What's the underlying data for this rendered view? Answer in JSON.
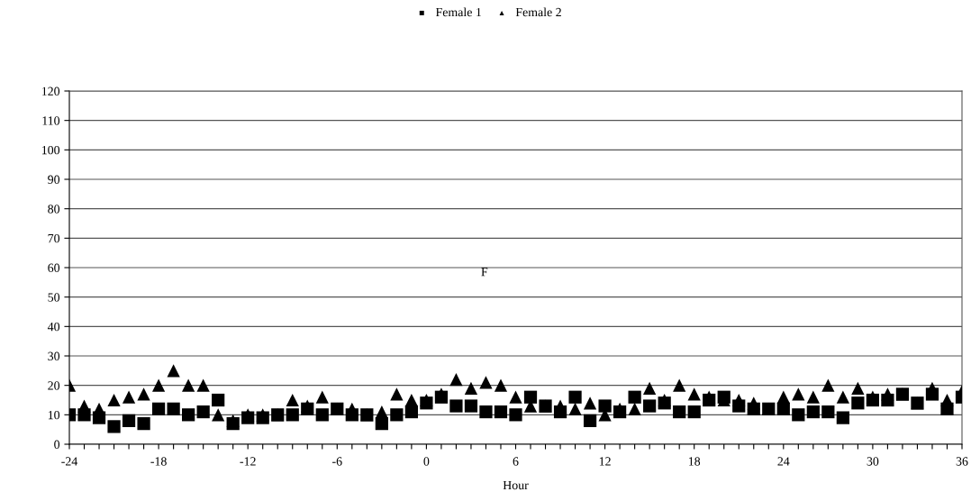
{
  "chart_data": {
    "type": "scatter",
    "xlabel": "Hour",
    "x": [
      -24,
      -23,
      -22,
      -21,
      -20,
      -19,
      -18,
      -17,
      -16,
      -15,
      -14,
      -13,
      -12,
      -11,
      -10,
      -9,
      -8,
      -7,
      -6,
      -5,
      -4,
      -3,
      -2,
      -1,
      0,
      1,
      2,
      3,
      4,
      5,
      6,
      7,
      8,
      9,
      10,
      11,
      12,
      13,
      14,
      15,
      16,
      17,
      18,
      19,
      20,
      21,
      22,
      23,
      24,
      25,
      26,
      27,
      28,
      29,
      30,
      31,
      32,
      33,
      34,
      35,
      36
    ],
    "series": [
      {
        "name": "Female 1",
        "color": "#000000",
        "marker": "square",
        "values": [
          10,
          10,
          9,
          6,
          8,
          7,
          12,
          12,
          10,
          11,
          15,
          7,
          9,
          9,
          10,
          10,
          12,
          10,
          12,
          10,
          10,
          7,
          10,
          11,
          14,
          16,
          13,
          13,
          11,
          11,
          10,
          16,
          13,
          11,
          16,
          8,
          13,
          11,
          16,
          13,
          14,
          11,
          11,
          15,
          16,
          13,
          12,
          12,
          12,
          10,
          11,
          11,
          9,
          14,
          15,
          15,
          17,
          14,
          17,
          12,
          16
        ]
      },
      {
        "name": "Female 2",
        "color": "#000000",
        "marker": "triangle",
        "values": [
          20,
          13,
          12,
          15,
          16,
          17,
          20,
          25,
          20,
          20,
          10,
          8,
          10,
          10,
          10,
          15,
          13,
          16,
          12,
          12,
          10,
          11,
          17,
          15,
          15,
          17,
          22,
          19,
          21,
          20,
          16,
          13,
          13,
          13,
          12,
          14,
          10,
          12,
          12,
          19,
          15,
          20,
          17,
          16,
          15,
          15,
          14,
          12,
          16,
          17,
          16,
          20,
          16,
          19,
          16,
          17,
          17,
          14,
          19,
          15,
          18
        ]
      }
    ],
    "xlim": [
      -24,
      36
    ],
    "xticks": [
      -24,
      {
        "value": -23,
        "label": null
      },
      {
        "value": -22,
        "label": null
      },
      {
        "value": -21,
        "label": null
      },
      {
        "value": -20,
        "label": null
      },
      {
        "value": -19,
        "label": null
      },
      -18,
      {
        "value": -17,
        "label": null
      },
      {
        "value": -16,
        "label": null
      },
      {
        "value": -15,
        "label": null
      },
      {
        "value": -14,
        "label": null
      },
      {
        "value": -13,
        "label": null
      },
      -12,
      {
        "value": -11,
        "label": null
      },
      {
        "value": -10,
        "label": null
      },
      {
        "value": -9,
        "label": null
      },
      {
        "value": -8,
        "label": null
      },
      {
        "value": -7,
        "label": null
      },
      -6,
      {
        "value": -5,
        "label": null
      },
      {
        "value": -4,
        "label": null
      },
      {
        "value": -3,
        "label": null
      },
      {
        "value": -2,
        "label": null
      },
      {
        "value": -1,
        "label": null
      },
      0,
      {
        "value": 1,
        "label": null
      },
      {
        "value": 2,
        "label": null
      },
      {
        "value": 3,
        "label": null
      },
      {
        "value": 4,
        "label": null
      },
      {
        "value": 5,
        "label": null
      },
      6,
      {
        "value": 7,
        "label": null
      },
      {
        "value": 8,
        "label": null
      },
      {
        "value": 9,
        "label": null
      },
      {
        "value": 10,
        "label": null
      },
      {
        "value": 11,
        "label": null
      },
      12,
      {
        "value": 13,
        "label": null
      },
      {
        "value": 14,
        "label": null
      },
      {
        "value": 15,
        "label": null
      },
      {
        "value": 16,
        "label": null
      },
      {
        "value": 17,
        "label": null
      },
      18,
      {
        "value": 19,
        "label": null
      },
      {
        "value": 20,
        "label": null
      },
      {
        "value": 21,
        "label": null
      },
      {
        "value": 22,
        "label": null
      },
      {
        "value": 23,
        "label": null
      },
      24,
      {
        "value": 25,
        "label": null
      },
      {
        "value": 26,
        "label": null
      },
      {
        "value": 27,
        "label": null
      },
      {
        "value": 28,
        "label": null
      },
      {
        "value": 29,
        "label": null
      },
      30,
      {
        "value": 31,
        "label": null
      },
      {
        "value": 32,
        "label": null
      },
      {
        "value": 33,
        "label": null
      },
      {
        "value": 34,
        "label": null
      },
      {
        "value": 35,
        "label": null
      },
      36
    ],
    "ylim": [
      0,
      120
    ],
    "yticks": [
      0,
      10,
      20,
      30,
      40,
      50,
      60,
      70,
      80,
      90,
      100,
      110,
      120
    ],
    "grid": "y",
    "legend": "top",
    "annotations": [
      "F"
    ]
  }
}
